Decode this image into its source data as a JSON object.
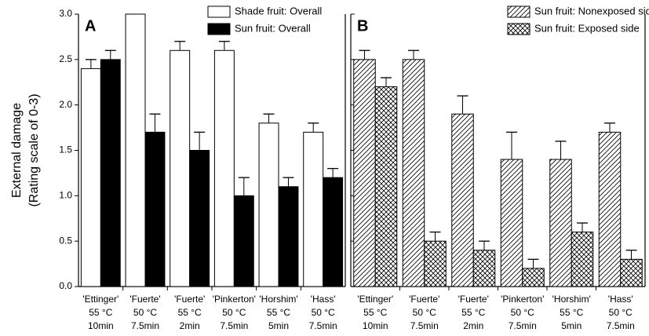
{
  "chart_data": [
    {
      "type": "bar",
      "panel_label": "A",
      "ylabel": [
        "External damage",
        "(Rating scale of 0-3)"
      ],
      "categories": [
        [
          "'Ettinger'",
          "55 °C",
          "10min"
        ],
        [
          "'Fuerte'",
          "50 °C",
          "7.5min"
        ],
        [
          "'Fuerte'",
          "55 °C",
          "2min"
        ],
        [
          "'Pinkerton'",
          "50 °C",
          "7.5min"
        ],
        [
          "'Horshim'",
          "55 °C",
          "5min"
        ],
        [
          "'Hass'",
          "50 °C",
          "7.5min"
        ]
      ],
      "series": [
        {
          "name": "Shade fruit: Overall",
          "color": "#ffffff",
          "pattern": "none",
          "values": [
            2.4,
            3.0,
            2.6,
            2.6,
            1.8,
            1.7
          ],
          "errors": [
            0.1,
            null,
            0.1,
            0.1,
            0.1,
            0.1
          ]
        },
        {
          "name": "Sun fruit: Overall",
          "color": "#000000",
          "pattern": "none",
          "values": [
            2.5,
            1.7,
            1.5,
            1.0,
            1.1,
            1.2
          ],
          "errors": [
            0.1,
            0.2,
            0.2,
            0.2,
            0.1,
            0.1
          ]
        }
      ],
      "ylim": [
        0,
        3
      ],
      "yticks": [
        {
          "value": 0,
          "label": "0.0"
        },
        0.5,
        {
          "value": 1,
          "label": "1.0"
        },
        1.5,
        {
          "value": 2,
          "label": "2.0"
        },
        2.5,
        {
          "value": 3,
          "label": "3.0"
        }
      ],
      "legend": "upper right"
    },
    {
      "type": "bar",
      "panel_label": "B",
      "categories": [
        [
          "'Ettinger'",
          "55 °C",
          "10min"
        ],
        [
          "'Fuerte'",
          "50 °C",
          "7.5min"
        ],
        [
          "'Fuerte'",
          "55 °C",
          "2min"
        ],
        [
          "'Pinkerton'",
          "50 °C",
          "7.5min"
        ],
        [
          "'Horshim'",
          "55 °C",
          "5min"
        ],
        [
          "'Hass'",
          "50 °C",
          "7.5min"
        ]
      ],
      "series": [
        {
          "name": "Sun fruit: Nonexposed side",
          "color": "#ffffff",
          "pattern": "hatch",
          "values": [
            2.5,
            2.5,
            1.9,
            1.4,
            1.4,
            1.7
          ],
          "errors": [
            0.1,
            0.1,
            0.2,
            0.3,
            0.2,
            0.1
          ]
        },
        {
          "name": "Sun fruit: Exposed side",
          "color": "#ffffff",
          "pattern": "crosshatch",
          "values": [
            2.2,
            0.5,
            0.4,
            0.2,
            0.6,
            0.3
          ],
          "errors": [
            0.1,
            0.1,
            0.1,
            0.1,
            0.1,
            0.1
          ]
        }
      ],
      "ylim": [
        0,
        3
      ],
      "yticks": [
        0,
        0.5,
        1,
        1.5,
        2,
        2.5,
        3
      ],
      "legend": "upper right"
    }
  ]
}
